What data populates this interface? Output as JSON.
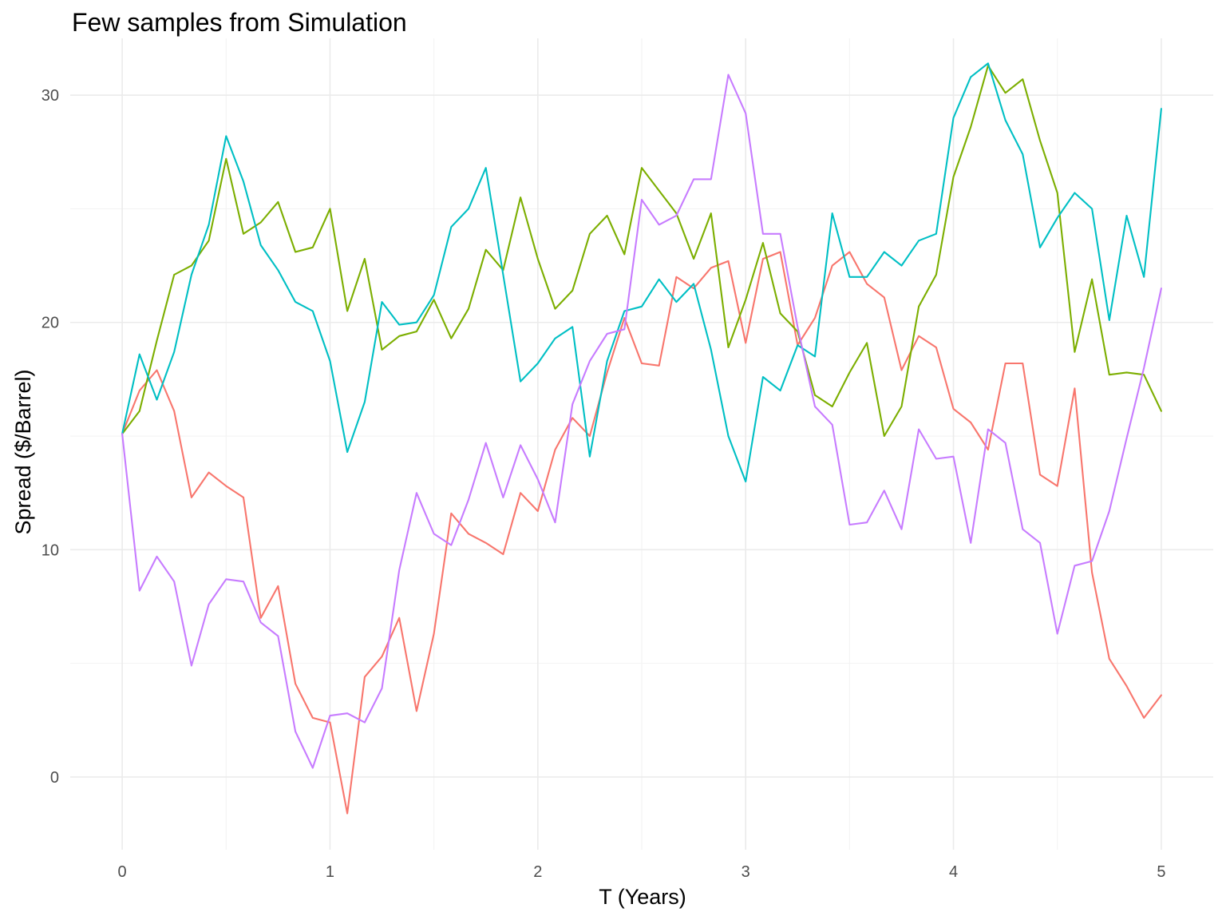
{
  "chart_data": {
    "type": "line",
    "title": "Few samples from Simulation",
    "xlabel": "T (Years)",
    "ylabel": "Spread ($/Barrel)",
    "xlim": [
      -0.25,
      5.25
    ],
    "ylim": [
      -3.2,
      32.5
    ],
    "x_ticks": [
      0,
      1,
      2,
      3,
      4,
      5
    ],
    "y_ticks": [
      0,
      10,
      20,
      30
    ],
    "x_tick_labels": [
      "0",
      "1",
      "2",
      "3",
      "4",
      "5"
    ],
    "y_tick_labels": [
      "0",
      "10",
      "20",
      "30"
    ],
    "grid": true,
    "legend": "none",
    "x": [
      0,
      0.0833,
      0.1667,
      0.25,
      0.3333,
      0.4167,
      0.5,
      0.5833,
      0.6667,
      0.75,
      0.8333,
      0.9167,
      1,
      1.0833,
      1.1667,
      1.25,
      1.3333,
      1.4167,
      1.5,
      1.5833,
      1.6667,
      1.75,
      1.8333,
      1.9167,
      2,
      2.0833,
      2.1667,
      2.25,
      2.3333,
      2.4167,
      2.5,
      2.5833,
      2.6667,
      2.75,
      2.8333,
      2.9167,
      3,
      3.0833,
      3.1667,
      3.25,
      3.3333,
      3.4167,
      3.5,
      3.5833,
      3.6667,
      3.75,
      3.8333,
      3.9167,
      4,
      4.0833,
      4.1667,
      4.25,
      4.3333,
      4.4167,
      4.5,
      4.5833,
      4.6667,
      4.75,
      4.8333,
      4.9167,
      5
    ],
    "series": [
      {
        "color": "#F8766D",
        "values": [
          15.1,
          17.0,
          17.9,
          16.1,
          12.3,
          13.4,
          12.8,
          12.3,
          7.0,
          8.4,
          4.1,
          2.6,
          2.4,
          -1.6,
          4.4,
          5.3,
          7.0,
          2.9,
          6.3,
          11.6,
          10.7,
          10.3,
          9.8,
          12.5,
          11.7,
          14.4,
          15.8,
          15.0,
          17.8,
          20.2,
          18.2,
          18.1,
          22.0,
          21.5,
          22.4,
          22.7,
          19.1,
          22.8,
          23.1,
          19.0,
          20.2,
          22.5,
          23.1,
          21.7,
          21.1,
          17.9,
          19.4,
          18.9,
          16.2,
          15.6,
          14.4,
          18.2,
          18.2,
          13.3,
          12.8,
          17.1,
          9.0,
          5.2,
          4.0,
          2.6,
          3.6
        ]
      },
      {
        "color": "#7CAE00",
        "values": [
          15.1,
          16.1,
          19.2,
          22.1,
          22.5,
          23.6,
          27.2,
          23.9,
          24.4,
          25.3,
          23.1,
          23.3,
          25.0,
          20.5,
          22.8,
          18.8,
          19.4,
          19.6,
          21.0,
          19.3,
          20.6,
          23.2,
          22.3,
          25.5,
          22.8,
          20.6,
          21.4,
          23.9,
          24.7,
          23.0,
          26.8,
          25.8,
          24.8,
          22.8,
          24.8,
          18.9,
          21.0,
          23.5,
          20.4,
          19.6,
          16.8,
          16.3,
          17.8,
          19.1,
          15.0,
          16.3,
          20.7,
          22.1,
          26.4,
          28.6,
          31.3,
          30.1,
          30.7,
          28.0,
          25.7,
          18.7,
          21.9,
          17.7,
          17.8,
          17.7,
          16.1
        ]
      },
      {
        "color": "#00BFC4",
        "values": [
          15.1,
          18.6,
          16.6,
          18.7,
          22.1,
          24.3,
          28.2,
          26.2,
          23.4,
          22.3,
          20.9,
          20.5,
          18.3,
          14.3,
          16.5,
          20.9,
          19.9,
          20.0,
          21.2,
          24.2,
          25.0,
          26.8,
          22.1,
          17.4,
          18.2,
          19.3,
          19.8,
          14.1,
          18.3,
          20.5,
          20.7,
          21.9,
          20.9,
          21.7,
          18.8,
          15.0,
          13.0,
          17.6,
          17.0,
          19.0,
          18.5,
          24.8,
          22.0,
          22.0,
          23.1,
          22.5,
          23.6,
          23.9,
          29.0,
          30.8,
          31.4,
          28.9,
          27.4,
          23.3,
          24.6,
          25.7,
          25.0,
          20.1,
          24.7,
          22.0,
          29.4
        ]
      },
      {
        "color": "#C77CFF",
        "values": [
          15.1,
          8.2,
          9.7,
          8.6,
          4.9,
          7.6,
          8.7,
          8.6,
          6.8,
          6.2,
          2.0,
          0.4,
          2.7,
          2.8,
          2.4,
          3.9,
          9.1,
          12.5,
          10.7,
          10.2,
          12.2,
          14.7,
          12.3,
          14.6,
          13.1,
          11.2,
          16.4,
          18.3,
          19.5,
          19.7,
          25.4,
          24.3,
          24.7,
          26.3,
          26.3,
          30.9,
          29.2,
          23.9,
          23.9,
          19.8,
          16.3,
          15.5,
          11.1,
          11.2,
          12.6,
          10.9,
          15.3,
          14.0,
          14.1,
          10.3,
          15.3,
          14.7,
          10.9,
          10.3,
          6.3,
          9.3,
          9.5,
          11.7,
          14.9,
          18.0,
          21.5
        ]
      }
    ]
  }
}
